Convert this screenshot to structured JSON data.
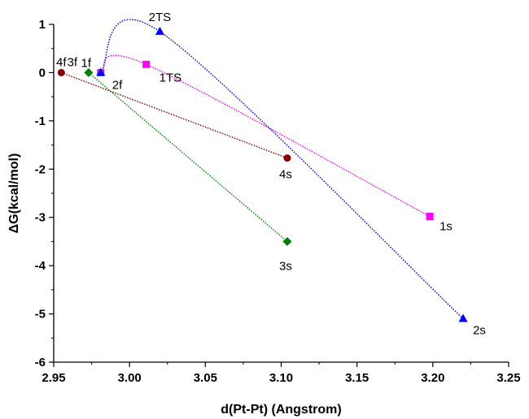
{
  "chart_data": {
    "type": "scatter",
    "xlabel": "d(Pt-Pt) (Angstrom)",
    "ylabel": "ΔG(kcal/mol)",
    "xlim": [
      2.95,
      3.25
    ],
    "ylim": [
      -6,
      1
    ],
    "xticks": [
      "2.95",
      "3.00",
      "3.05",
      "3.10",
      "3.15",
      "3.20",
      "3.25"
    ],
    "yticks": [
      "1",
      "0",
      "-1",
      "-2",
      "-3",
      "-4",
      "-5",
      "-6"
    ],
    "grid": false,
    "series": [
      {
        "color": "#ff00ff",
        "marker": "square",
        "curve": "smooth",
        "points": [
          {
            "x": 2.981,
            "y": 0.0,
            "label": "1f"
          },
          {
            "x": 3.011,
            "y": 0.17,
            "label": "1TS"
          },
          {
            "x": 3.198,
            "y": -2.98,
            "label": "1s"
          }
        ]
      },
      {
        "color": "#0000ff",
        "marker": "triangle",
        "curve": "smooth",
        "points": [
          {
            "x": 2.981,
            "y": 0.0,
            "label": "2f"
          },
          {
            "x": 3.02,
            "y": 0.85,
            "label": "2TS"
          },
          {
            "x": 3.22,
            "y": -5.1,
            "label": "2s"
          }
        ]
      },
      {
        "color": "#008000",
        "marker": "diamond",
        "curve": "linear",
        "points": [
          {
            "x": 2.973,
            "y": 0.0,
            "label": "3f"
          },
          {
            "x": 3.104,
            "y": -3.5,
            "label": "3s"
          }
        ]
      },
      {
        "color": "#8b0000",
        "marker": "circle",
        "curve": "linear",
        "points": [
          {
            "x": 2.955,
            "y": 0.0,
            "label": "4f"
          },
          {
            "x": 3.104,
            "y": -1.77,
            "label": "4s"
          }
        ]
      }
    ]
  }
}
